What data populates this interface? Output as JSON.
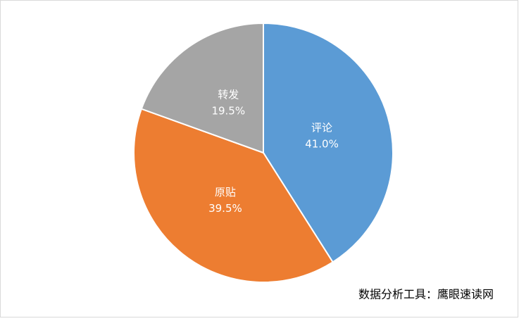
{
  "chart_data": {
    "type": "pie",
    "categories": [
      "评论",
      "原贴",
      "转发"
    ],
    "values": [
      41.0,
      39.5,
      19.5
    ],
    "value_labels": [
      "41.0%",
      "39.5%",
      "19.5%"
    ],
    "colors": [
      "#5b9bd5",
      "#ed7d31",
      "#a5a5a5"
    ],
    "annotation": "数据分析工具：鹰眼速读网"
  }
}
